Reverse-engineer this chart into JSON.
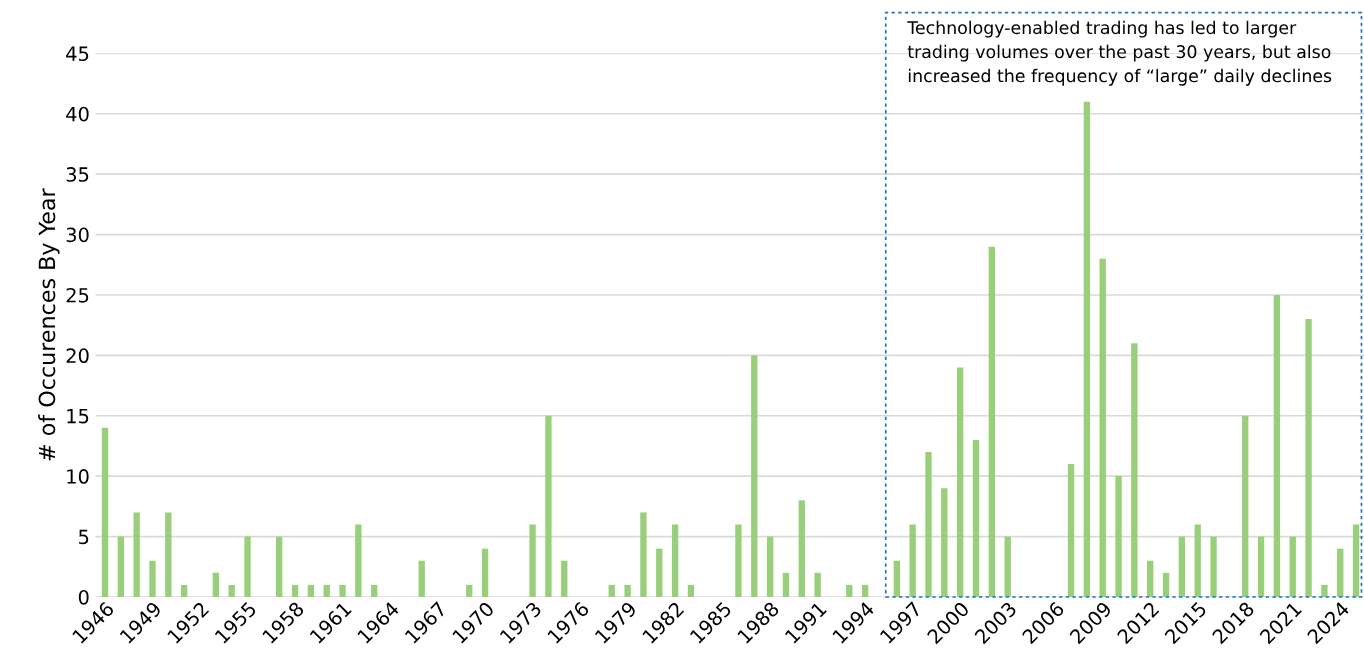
{
  "chart_data": {
    "type": "bar",
    "ylabel": "# of Occurences By Year",
    "categories": [
      "1946",
      null,
      null,
      "1949",
      null,
      null,
      "1952",
      null,
      null,
      "1955",
      null,
      null,
      "1958",
      null,
      null,
      "1961",
      null,
      null,
      "1964",
      null,
      null,
      "1967",
      null,
      null,
      "1970",
      null,
      null,
      "1973",
      null,
      null,
      "1976",
      null,
      null,
      "1979",
      null,
      null,
      "1982",
      null,
      null,
      "1985",
      null,
      null,
      "1988",
      null,
      null,
      "1991",
      null,
      null,
      "1994",
      null,
      null,
      "1997",
      null,
      null,
      "2000",
      null,
      null,
      "2003",
      null,
      null,
      "2006",
      null,
      null,
      "2009",
      null,
      null,
      "2012",
      null,
      null,
      "2015",
      null,
      null,
      "2018",
      null,
      null,
      "2021",
      null,
      null,
      "2024",
      null
    ],
    "values": [
      14,
      5,
      7,
      3,
      7,
      1,
      0,
      2,
      1,
      5,
      0,
      5,
      1,
      1,
      1,
      1,
      6,
      1,
      0,
      0,
      3,
      0,
      0,
      1,
      4,
      0,
      0,
      6,
      15,
      3,
      0,
      0,
      1,
      1,
      7,
      4,
      6,
      1,
      0,
      0,
      6,
      20,
      5,
      2,
      8,
      2,
      0,
      1,
      1,
      0,
      3,
      6,
      12,
      9,
      19,
      13,
      29,
      5,
      0,
      0,
      0,
      11,
      41,
      28,
      10,
      21,
      3,
      2,
      5,
      6,
      5,
      0,
      15,
      5,
      25,
      5,
      23,
      1,
      4,
      6
    ],
    "color": "#99cf7a",
    "ylim": [
      0,
      45
    ],
    "yticks": [
      0,
      5,
      10,
      15,
      20,
      25,
      30,
      35,
      40,
      45
    ],
    "grid": "y",
    "legend": false,
    "annotations": [
      "Technology-enabled trading has led to larger trading volumes over the past 30 years, but also increased the frequency of “large” daily declines"
    ]
  }
}
